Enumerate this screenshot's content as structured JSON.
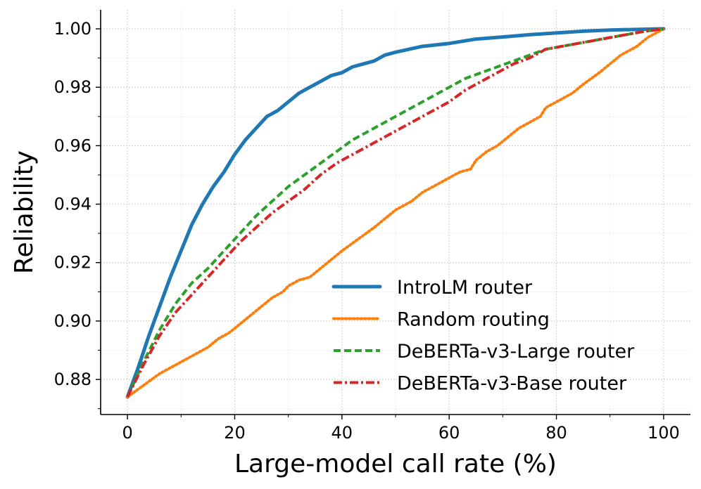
{
  "chart_data": {
    "type": "line",
    "title": "",
    "xlabel": "Large-model call rate (%)",
    "ylabel": "Reliability",
    "xlim": [
      -5,
      105
    ],
    "ylim": [
      0.868,
      1.0065
    ],
    "xticks": [
      0,
      20,
      40,
      60,
      80,
      100
    ],
    "xtick_labels": [
      "0",
      "20",
      "40",
      "60",
      "80",
      "100"
    ],
    "yticks": [
      0.88,
      0.9,
      0.92,
      0.94,
      0.96,
      0.98,
      1.0
    ],
    "ytick_labels": [
      "0.88",
      "0.90",
      "0.92",
      "0.94",
      "0.96",
      "0.98",
      "1.00"
    ],
    "grid": true,
    "legend_position": "lower-right",
    "series": [
      {
        "name": "IntroLM router",
        "color": "#1f77b4",
        "style": "solid",
        "x": [
          0,
          2,
          4,
          6,
          8,
          10,
          12,
          14,
          16,
          18,
          20,
          22,
          24,
          26,
          28,
          30,
          32,
          34,
          36,
          38,
          40,
          42,
          44,
          46,
          48,
          50,
          55,
          60,
          65,
          70,
          75,
          80,
          85,
          90,
          95,
          100
        ],
        "y": [
          0.874,
          0.884,
          0.895,
          0.905,
          0.915,
          0.924,
          0.933,
          0.94,
          0.946,
          0.951,
          0.957,
          0.962,
          0.966,
          0.97,
          0.972,
          0.975,
          0.978,
          0.98,
          0.982,
          0.984,
          0.985,
          0.987,
          0.988,
          0.989,
          0.991,
          0.992,
          0.994,
          0.995,
          0.9965,
          0.9972,
          0.998,
          0.9986,
          0.9992,
          0.9996,
          0.9998,
          1.0
        ]
      },
      {
        "name": "Random routing",
        "color": "#ff7f0e",
        "style": "dotted",
        "x": [
          0,
          3,
          6,
          8,
          10,
          12,
          15,
          17,
          19,
          21,
          23,
          25,
          27,
          29,
          30,
          32,
          34,
          36,
          38,
          40,
          43,
          46,
          48,
          50,
          53,
          55,
          58,
          60,
          62,
          64,
          65,
          67,
          69,
          71,
          73,
          75,
          77,
          78,
          79,
          81,
          83,
          85,
          88,
          90,
          92,
          95,
          97,
          100
        ],
        "y": [
          0.874,
          0.878,
          0.882,
          0.884,
          0.886,
          0.888,
          0.891,
          0.894,
          0.896,
          0.899,
          0.902,
          0.905,
          0.908,
          0.91,
          0.912,
          0.914,
          0.915,
          0.918,
          0.921,
          0.924,
          0.928,
          0.932,
          0.935,
          0.938,
          0.941,
          0.944,
          0.947,
          0.949,
          0.951,
          0.952,
          0.955,
          0.958,
          0.96,
          0.963,
          0.966,
          0.968,
          0.97,
          0.973,
          0.974,
          0.976,
          0.978,
          0.981,
          0.985,
          0.988,
          0.991,
          0.994,
          0.997,
          1.0
        ]
      },
      {
        "name": "DeBERTa-v3-Large router",
        "color": "#2ca02c",
        "style": "dashed",
        "x": [
          0,
          3,
          6,
          9,
          12,
          15,
          18,
          21,
          24,
          27,
          30,
          33,
          36,
          39,
          42,
          45,
          48,
          51,
          54,
          57,
          60,
          63,
          66,
          69,
          72,
          75,
          78,
          81,
          84,
          87,
          90,
          93,
          96,
          100
        ],
        "y": [
          0.874,
          0.886,
          0.897,
          0.906,
          0.913,
          0.918,
          0.924,
          0.93,
          0.936,
          0.941,
          0.946,
          0.95,
          0.954,
          0.958,
          0.962,
          0.965,
          0.968,
          0.971,
          0.974,
          0.977,
          0.98,
          0.983,
          0.985,
          0.987,
          0.989,
          0.991,
          0.993,
          0.994,
          0.995,
          0.996,
          0.997,
          0.998,
          0.999,
          1.0
        ]
      },
      {
        "name": "DeBERTa-v3-Base router",
        "color": "#d62728",
        "style": "dashdot",
        "x": [
          0,
          3,
          6,
          9,
          12,
          15,
          18,
          21,
          24,
          27,
          30,
          33,
          36,
          39,
          42,
          45,
          48,
          51,
          54,
          57,
          60,
          63,
          66,
          69,
          72,
          75,
          78,
          81,
          84,
          87,
          90,
          93,
          96,
          100
        ],
        "y": [
          0.874,
          0.885,
          0.895,
          0.903,
          0.909,
          0.915,
          0.921,
          0.927,
          0.932,
          0.937,
          0.941,
          0.945,
          0.95,
          0.954,
          0.957,
          0.96,
          0.963,
          0.966,
          0.969,
          0.972,
          0.975,
          0.979,
          0.982,
          0.985,
          0.988,
          0.99,
          0.993,
          0.994,
          0.995,
          0.996,
          0.997,
          0.998,
          0.999,
          1.0
        ]
      }
    ]
  }
}
